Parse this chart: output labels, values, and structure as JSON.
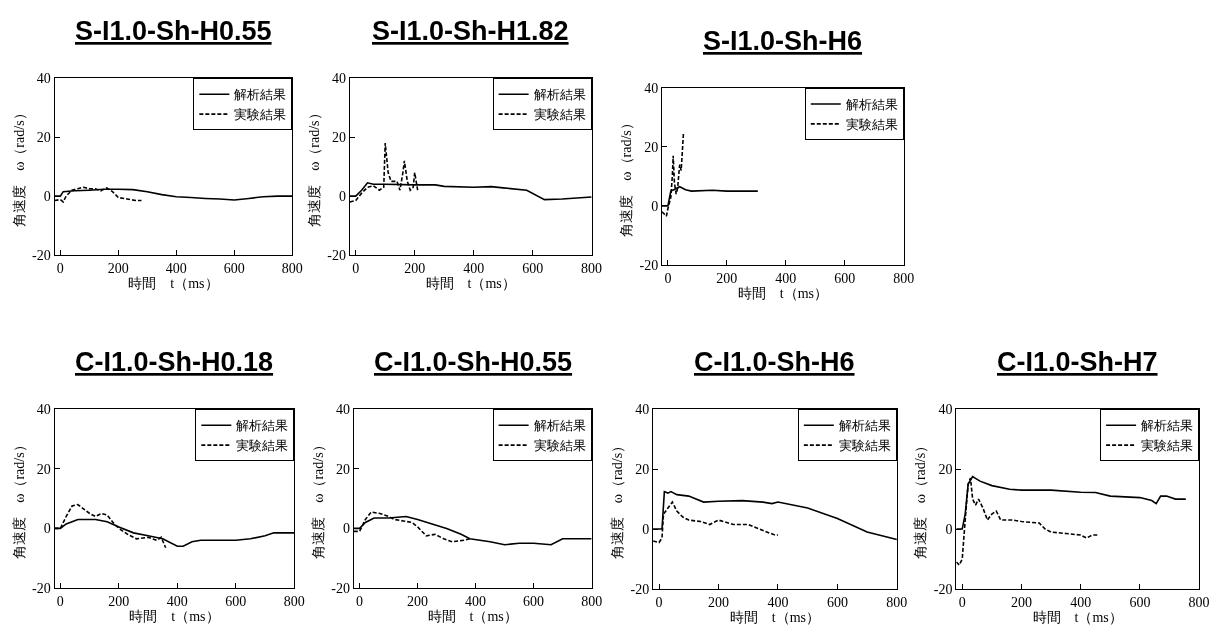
{
  "chart_data": [
    {
      "type": "line",
      "title": "S-I1.0-Sh-H0.55",
      "xlabel": "時間　t（ms）",
      "ylabel": "角速度　ω（rad/s）",
      "xlim": [
        -20,
        800
      ],
      "ylim": [
        -20,
        40
      ],
      "xticks": [
        0,
        200,
        400,
        600,
        800
      ],
      "yticks": [
        -20,
        0,
        20,
        40
      ],
      "legend": "top right",
      "series": [
        {
          "name": "解析結果",
          "color": "#000000",
          "line_style": "solid",
          "x": [
            -20,
            0,
            10,
            50,
            100,
            150,
            200,
            250,
            300,
            350,
            400,
            450,
            500,
            550,
            600,
            650,
            700,
            750,
            800
          ],
          "values": [
            0,
            0,
            1.5,
            1.8,
            2,
            2.3,
            2.3,
            2.2,
            1.5,
            0.5,
            -0.2,
            -0.5,
            -0.8,
            -1,
            -1.3,
            -0.8,
            -0.2,
            0,
            0
          ]
        },
        {
          "name": "実験結果",
          "color": "#000000",
          "line_style": "dashed",
          "x": [
            -20,
            0,
            10,
            20,
            40,
            60,
            80,
            100,
            120,
            140,
            160,
            180,
            200,
            230,
            260,
            280
          ],
          "values": [
            -1.5,
            -1.2,
            -2,
            0,
            2,
            2.5,
            3,
            2.5,
            2.5,
            1.8,
            2.8,
            1.5,
            -0.5,
            -1,
            -1.5,
            -1.5
          ]
        }
      ]
    },
    {
      "type": "line",
      "title": "S-I1.0-Sh-H1.82",
      "xlabel": "時間　t（ms）",
      "ylabel": "角速度　ω（rad/s）",
      "xlim": [
        -20,
        800
      ],
      "ylim": [
        -20,
        40
      ],
      "xticks": [
        0,
        200,
        400,
        600,
        800
      ],
      "yticks": [
        -20,
        0,
        20,
        40
      ],
      "legend": "top right",
      "series": [
        {
          "name": "解析結果",
          "color": "#000000",
          "line_style": "solid",
          "x": [
            -20,
            0,
            20,
            40,
            60,
            100,
            200,
            270,
            300,
            400,
            460,
            500,
            580,
            640,
            700,
            800
          ],
          "values": [
            0,
            0,
            2,
            4.5,
            4,
            4,
            3.8,
            3.8,
            3.3,
            3,
            3.2,
            2.8,
            2,
            -1.2,
            -1,
            -0.3
          ]
        },
        {
          "name": "実験結果",
          "color": "#000000",
          "line_style": "dashed",
          "x": [
            -20,
            0,
            20,
            40,
            60,
            80,
            95,
            100,
            110,
            120,
            140,
            150,
            160,
            165,
            175,
            185,
            195,
            200,
            210
          ],
          "values": [
            -2,
            -1.5,
            1,
            3,
            3.5,
            2,
            3,
            18,
            8,
            5,
            5,
            2,
            8,
            12,
            5,
            2,
            3,
            8,
            2
          ]
        }
      ]
    },
    {
      "type": "line",
      "title": "S-I1.0-Sh-H6",
      "xlabel": "時間　t（ms）",
      "ylabel": "角速度　ω（rad/s）",
      "xlim": [
        -20,
        800
      ],
      "ylim": [
        -20,
        40
      ],
      "xticks": [
        0,
        200,
        400,
        600,
        800
      ],
      "yticks": [
        -20,
        0,
        20,
        40
      ],
      "legend": "top right",
      "series": [
        {
          "name": "解析結果",
          "color": "#000000",
          "line_style": "solid",
          "x": [
            -20,
            0,
            10,
            20,
            40,
            60,
            80,
            150,
            200,
            250,
            305
          ],
          "values": [
            0,
            0,
            5,
            5.5,
            6.5,
            5.5,
            5,
            5.3,
            5,
            5,
            5
          ]
        },
        {
          "name": "実験結果",
          "color": "#000000",
          "line_style": "dashed",
          "x": [
            -20,
            -5,
            0,
            10,
            15,
            18,
            22,
            28,
            33,
            40,
            45,
            50,
            53
          ],
          "values": [
            -2,
            -3.5,
            -1,
            3,
            10,
            17,
            8,
            4,
            6,
            14,
            12,
            20,
            25
          ]
        }
      ]
    },
    {
      "type": "line",
      "title": "C-I1.0-Sh-H0.18",
      "xlabel": "時間　t（ms）",
      "ylabel": "角速度　ω（rad/s）",
      "xlim": [
        -20,
        800
      ],
      "ylim": [
        -20,
        40
      ],
      "xticks": [
        0,
        200,
        400,
        600,
        800
      ],
      "yticks": [
        -20,
        0,
        20,
        40
      ],
      "legend": "top right",
      "series": [
        {
          "name": "解析結果",
          "color": "#000000",
          "line_style": "solid",
          "x": [
            -20,
            0,
            20,
            60,
            120,
            160,
            200,
            250,
            300,
            350,
            400,
            420,
            450,
            480,
            600,
            650,
            700,
            730,
            800
          ],
          "values": [
            0,
            0,
            1.5,
            3,
            3,
            2.2,
            0.5,
            -1.5,
            -2.5,
            -3.5,
            -6,
            -6,
            -4.5,
            -4,
            -4,
            -3.5,
            -2.5,
            -1.5,
            -1.5
          ]
        },
        {
          "name": "実験結果",
          "color": "#000000",
          "line_style": "dashed",
          "x": [
            -20,
            0,
            20,
            40,
            60,
            80,
            100,
            120,
            140,
            160,
            180,
            200,
            230,
            260,
            300,
            330,
            345,
            360
          ],
          "values": [
            0,
            0,
            4,
            7.5,
            8,
            6.5,
            5,
            4,
            5,
            4.5,
            2,
            0,
            -2,
            -3.5,
            -3,
            -4,
            -3,
            -6.5
          ]
        }
      ]
    },
    {
      "type": "line",
      "title": "C-I1.0-Sh-H0.55",
      "xlabel": "時間　t（ms）",
      "ylabel": "角速度　ω（rad/s）",
      "xlim": [
        -20,
        800
      ],
      "ylim": [
        -20,
        40
      ],
      "xticks": [
        0,
        200,
        400,
        600,
        800
      ],
      "yticks": [
        -20,
        0,
        20,
        40
      ],
      "legend": "top right",
      "series": [
        {
          "name": "解析結果",
          "color": "#000000",
          "line_style": "solid",
          "x": [
            -20,
            0,
            20,
            50,
            100,
            160,
            200,
            250,
            300,
            350,
            380,
            450,
            500,
            550,
            600,
            660,
            700,
            800
          ],
          "values": [
            0,
            0,
            2,
            3.5,
            3.5,
            4,
            3,
            1.5,
            0,
            -2,
            -3.5,
            -4.5,
            -5.5,
            -5,
            -5,
            -5.5,
            -3.5,
            -3.5
          ]
        },
        {
          "name": "実験結果",
          "color": "#000000",
          "line_style": "dashed",
          "x": [
            -20,
            0,
            20,
            40,
            70,
            100,
            120,
            150,
            180,
            200,
            230,
            260,
            290,
            320,
            360,
            380
          ],
          "values": [
            -1,
            -1,
            3,
            5.5,
            5,
            4,
            3,
            2.5,
            2,
            0.5,
            -2.5,
            -2,
            -3.5,
            -4.5,
            -4,
            -3.5
          ]
        }
      ]
    },
    {
      "type": "line",
      "title": "C-I1.0-Sh-H6",
      "xlabel": "時間　t（ms）",
      "ylabel": "角速度　ω（rad/s）",
      "xlim": [
        -20,
        800
      ],
      "ylim": [
        -20,
        40
      ],
      "xticks": [
        0,
        200,
        400,
        600,
        800
      ],
      "yticks": [
        -20,
        0,
        20,
        40
      ],
      "legend": "top right",
      "series": [
        {
          "name": "解析結果",
          "color": "#000000",
          "line_style": "solid",
          "x": [
            -20,
            10,
            18,
            30,
            40,
            60,
            100,
            150,
            200,
            280,
            350,
            380,
            400,
            500,
            600,
            700,
            800
          ],
          "values": [
            0,
            0,
            12.5,
            12,
            12.5,
            11.5,
            11,
            9,
            9.3,
            9.5,
            9,
            8.5,
            9,
            7,
            3.5,
            -1,
            -3.5
          ]
        },
        {
          "name": "実験結果",
          "color": "#000000",
          "line_style": "dashed",
          "x": [
            -20,
            0,
            10,
            15,
            30,
            45,
            60,
            80,
            100,
            140,
            170,
            200,
            250,
            300,
            350,
            390,
            400
          ],
          "values": [
            -4,
            -4.5,
            -3,
            5,
            7,
            9,
            6,
            4,
            3,
            2.5,
            1.5,
            3,
            1.5,
            1.5,
            -0.5,
            -2,
            -2
          ]
        }
      ]
    },
    {
      "type": "line",
      "title": "C-I1.0-Sh-H7",
      "xlabel": "時間　t（ms）",
      "ylabel": "角速度　ω（rad/s）",
      "xlim": [
        -20,
        800
      ],
      "ylim": [
        -20,
        40
      ],
      "xticks": [
        0,
        200,
        400,
        600,
        800
      ],
      "yticks": [
        -20,
        0,
        20,
        40
      ],
      "legend": "top right",
      "series": [
        {
          "name": "解析結果",
          "color": "#000000",
          "line_style": "solid",
          "x": [
            -20,
            0,
            10,
            20,
            35,
            60,
            100,
            160,
            200,
            300,
            400,
            450,
            500,
            600,
            640,
            655,
            670,
            690,
            720,
            755
          ],
          "values": [
            0,
            0,
            5,
            15,
            17.5,
            16,
            14.5,
            13.3,
            13,
            13,
            12.3,
            12.2,
            11,
            10.5,
            9.5,
            8.5,
            11,
            11,
            10,
            10
          ]
        },
        {
          "name": "実験結果",
          "color": "#000000",
          "line_style": "dashed",
          "x": [
            -20,
            -10,
            0,
            10,
            20,
            28,
            35,
            45,
            55,
            70,
            85,
            100,
            115,
            130,
            170,
            200,
            260,
            280,
            300,
            350,
            400,
            420,
            440,
            460
          ],
          "values": [
            -11,
            -12,
            -10,
            3,
            15,
            17,
            10,
            8,
            10,
            7,
            3,
            5,
            6,
            3,
            3,
            2.5,
            2,
            0,
            -1,
            -1.5,
            -2,
            -3,
            -2,
            -2
          ]
        }
      ]
    }
  ]
}
